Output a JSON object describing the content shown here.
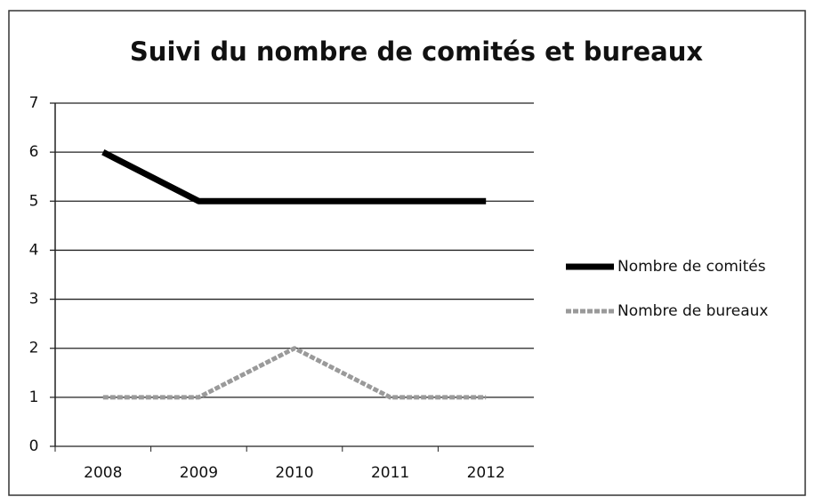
{
  "chart_data": {
    "type": "line",
    "title": "Suivi du nombre de comités et bureaux",
    "categories": [
      "2008",
      "2009",
      "2010",
      "2011",
      "2012"
    ],
    "series": [
      {
        "name": "Nombre de comités",
        "color": "#000000",
        "values": [
          6,
          5,
          5,
          5,
          5
        ]
      },
      {
        "name": "Nombre de bureaux",
        "color": "#9a9a9a",
        "values": [
          1,
          1,
          2,
          1,
          1
        ]
      }
    ],
    "ylim": [
      0,
      7
    ],
    "yticks": [
      0,
      1,
      2,
      3,
      4,
      5,
      6,
      7
    ],
    "grid": true,
    "legend": "right"
  }
}
